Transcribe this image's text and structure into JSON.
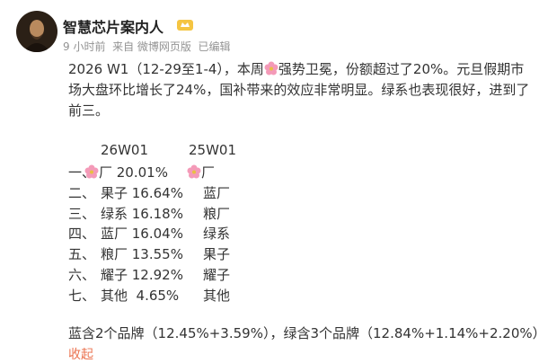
{
  "post": {
    "author": "智慧芯片案内人",
    "meta": "9 小时前  来自 微博网页版  已编辑",
    "text_before_emoji": "2026 W1（12-29至1-4），本周",
    "text_after_emoji": "强势卫冕，份额超过了20%。元旦假期市场大盘环比增长了24%，国补带来的效应非常明显。绿系也表现很好，进到了前三。",
    "table": {
      "headers": [
        "26W01",
        "25W01"
      ],
      "rows": [
        [
          "一、",
          "厂 20.01%",
          "厂"
        ],
        [
          "二、",
          "果子 16.64%",
          "蓝厂"
        ],
        [
          "三、",
          "绿系 16.18%",
          "粮厂"
        ],
        [
          "四、",
          "蓝厂 16.04%",
          "绿系"
        ],
        [
          "五、",
          "粮厂 13.55%",
          "果子"
        ],
        [
          "六、",
          "耀子 12.92%",
          "耀子"
        ],
        [
          "七、",
          "其他  4.65%",
          "其他"
        ]
      ]
    },
    "footer": "蓝含2个品牌（12.45%+3.59%），绿含3个品牌（12.84%+1.14%+2.20%）。",
    "collapse": "收起"
  }
}
